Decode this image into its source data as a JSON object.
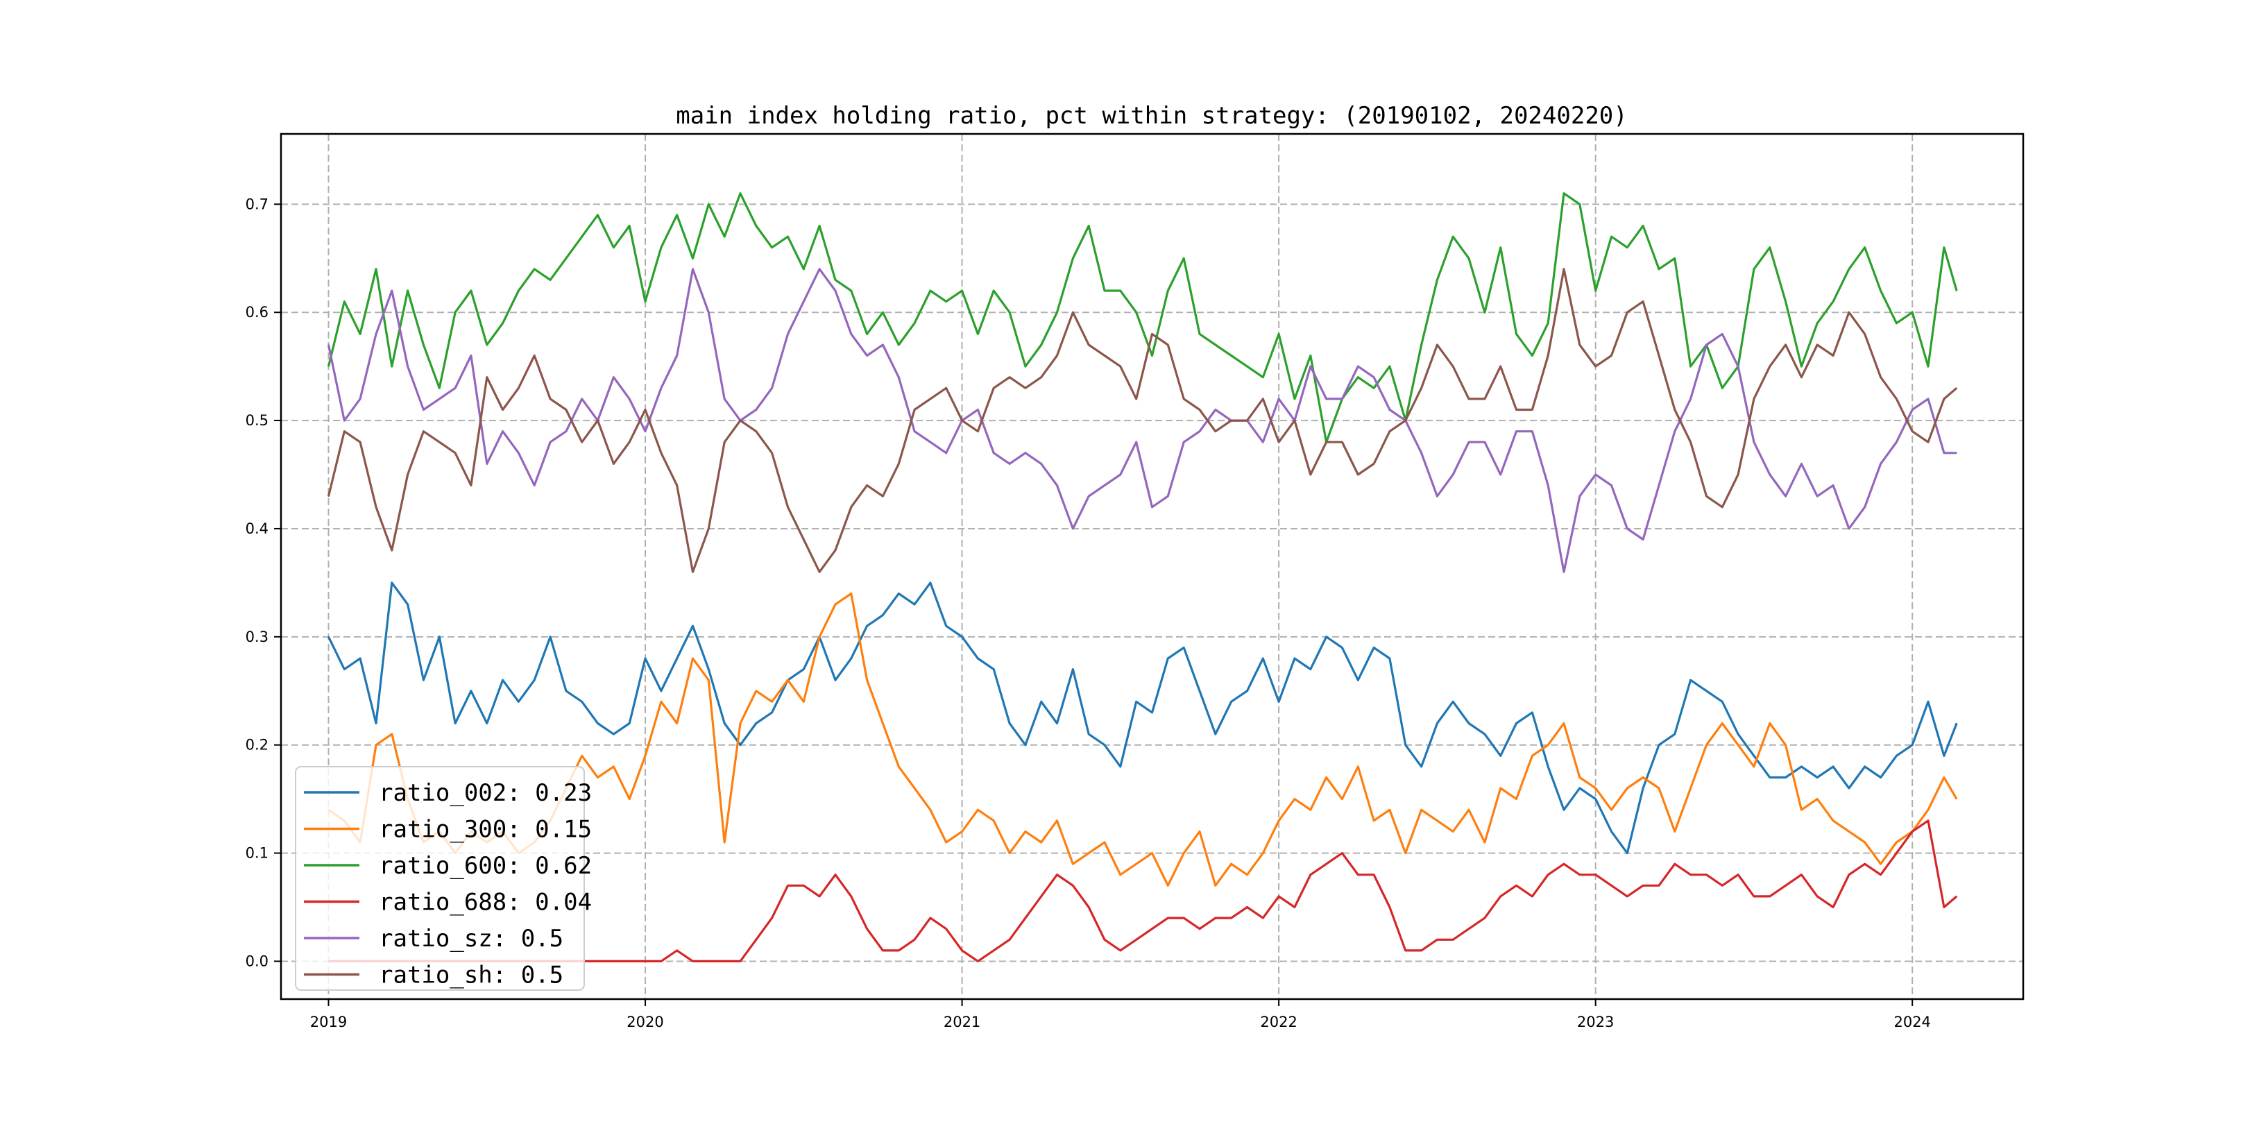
{
  "chart_data": {
    "type": "line",
    "title": "main index holding ratio, pct within strategy: (20190102, 20240220)",
    "xlabel": "",
    "ylabel": "",
    "xlim": [
      2018.85,
      2024.35
    ],
    "ylim": [
      -0.035,
      0.765
    ],
    "grid": true,
    "legend_position": "lower-left",
    "x_ticks": [
      2019,
      2020,
      2021,
      2022,
      2023,
      2024
    ],
    "x_tick_labels": [
      "2019",
      "2020",
      "2021",
      "2022",
      "2023",
      "2024"
    ],
    "y_ticks": [
      0.0,
      0.1,
      0.2,
      0.3,
      0.4,
      0.5,
      0.6,
      0.7
    ],
    "y_tick_labels": [
      "0.0",
      "0.1",
      "0.2",
      "0.3",
      "0.4",
      "0.5",
      "0.6",
      "0.7"
    ],
    "x": [
      2019.0,
      2019.05,
      2019.1,
      2019.15,
      2019.2,
      2019.25,
      2019.3,
      2019.35,
      2019.4,
      2019.45,
      2019.5,
      2019.55,
      2019.6,
      2019.65,
      2019.7,
      2019.75,
      2019.8,
      2019.85,
      2019.9,
      2019.95,
      2020.0,
      2020.05,
      2020.1,
      2020.15,
      2020.2,
      2020.25,
      2020.3,
      2020.35,
      2020.4,
      2020.45,
      2020.5,
      2020.55,
      2020.6,
      2020.65,
      2020.7,
      2020.75,
      2020.8,
      2020.85,
      2020.9,
      2020.95,
      2021.0,
      2021.05,
      2021.1,
      2021.15,
      2021.2,
      2021.25,
      2021.3,
      2021.35,
      2021.4,
      2021.45,
      2021.5,
      2021.55,
      2021.6,
      2021.65,
      2021.7,
      2021.75,
      2021.8,
      2021.85,
      2021.9,
      2021.95,
      2022.0,
      2022.05,
      2022.1,
      2022.15,
      2022.2,
      2022.25,
      2022.3,
      2022.35,
      2022.4,
      2022.45,
      2022.5,
      2022.55,
      2022.6,
      2022.65,
      2022.7,
      2022.75,
      2022.8,
      2022.85,
      2022.9,
      2022.95,
      2023.0,
      2023.05,
      2023.1,
      2023.15,
      2023.2,
      2023.25,
      2023.3,
      2023.35,
      2023.4,
      2023.45,
      2023.5,
      2023.55,
      2023.6,
      2023.65,
      2023.7,
      2023.75,
      2023.8,
      2023.85,
      2023.9,
      2023.95,
      2024.0,
      2024.05,
      2024.1,
      2024.14
    ],
    "series": [
      {
        "name": "ratio_002",
        "legend_label": "ratio_002: 0.23",
        "color": "#1f77b4",
        "values": [
          0.3,
          0.27,
          0.28,
          0.22,
          0.35,
          0.33,
          0.26,
          0.3,
          0.22,
          0.25,
          0.22,
          0.26,
          0.24,
          0.26,
          0.3,
          0.25,
          0.24,
          0.22,
          0.21,
          0.22,
          0.28,
          0.25,
          0.28,
          0.31,
          0.27,
          0.22,
          0.2,
          0.22,
          0.23,
          0.26,
          0.27,
          0.3,
          0.26,
          0.28,
          0.31,
          0.32,
          0.34,
          0.33,
          0.35,
          0.31,
          0.3,
          0.28,
          0.27,
          0.22,
          0.2,
          0.24,
          0.22,
          0.27,
          0.21,
          0.2,
          0.18,
          0.24,
          0.23,
          0.28,
          0.29,
          0.25,
          0.21,
          0.24,
          0.25,
          0.28,
          0.24,
          0.28,
          0.27,
          0.3,
          0.29,
          0.26,
          0.29,
          0.28,
          0.2,
          0.18,
          0.22,
          0.24,
          0.22,
          0.21,
          0.19,
          0.22,
          0.23,
          0.18,
          0.14,
          0.16,
          0.15,
          0.12,
          0.1,
          0.16,
          0.2,
          0.21,
          0.26,
          0.25,
          0.24,
          0.21,
          0.19,
          0.17,
          0.17,
          0.18,
          0.17,
          0.18,
          0.16,
          0.18,
          0.17,
          0.19,
          0.2,
          0.24,
          0.19,
          0.22
        ]
      },
      {
        "name": "ratio_300",
        "legend_label": "ratio_300: 0.15",
        "color": "#ff7f0e",
        "values": [
          0.14,
          0.13,
          0.11,
          0.2,
          0.21,
          0.15,
          0.11,
          0.12,
          0.1,
          0.12,
          0.11,
          0.12,
          0.1,
          0.11,
          0.13,
          0.16,
          0.19,
          0.17,
          0.18,
          0.15,
          0.19,
          0.24,
          0.22,
          0.28,
          0.26,
          0.11,
          0.22,
          0.25,
          0.24,
          0.26,
          0.24,
          0.3,
          0.33,
          0.34,
          0.26,
          0.22,
          0.18,
          0.16,
          0.14,
          0.11,
          0.12,
          0.14,
          0.13,
          0.1,
          0.12,
          0.11,
          0.13,
          0.09,
          0.1,
          0.11,
          0.08,
          0.09,
          0.1,
          0.07,
          0.1,
          0.12,
          0.07,
          0.09,
          0.08,
          0.1,
          0.13,
          0.15,
          0.14,
          0.17,
          0.15,
          0.18,
          0.13,
          0.14,
          0.1,
          0.14,
          0.13,
          0.12,
          0.14,
          0.11,
          0.16,
          0.15,
          0.19,
          0.2,
          0.22,
          0.17,
          0.16,
          0.14,
          0.16,
          0.17,
          0.16,
          0.12,
          0.16,
          0.2,
          0.22,
          0.2,
          0.18,
          0.22,
          0.2,
          0.14,
          0.15,
          0.13,
          0.12,
          0.11,
          0.09,
          0.11,
          0.12,
          0.14,
          0.17,
          0.15
        ]
      },
      {
        "name": "ratio_600",
        "legend_label": "ratio_600: 0.62",
        "color": "#2ca02c",
        "values": [
          0.55,
          0.61,
          0.58,
          0.64,
          0.55,
          0.62,
          0.57,
          0.53,
          0.6,
          0.62,
          0.57,
          0.59,
          0.62,
          0.64,
          0.63,
          0.65,
          0.67,
          0.69,
          0.66,
          0.68,
          0.61,
          0.66,
          0.69,
          0.65,
          0.7,
          0.67,
          0.71,
          0.68,
          0.66,
          0.67,
          0.64,
          0.68,
          0.63,
          0.62,
          0.58,
          0.6,
          0.57,
          0.59,
          0.62,
          0.61,
          0.62,
          0.58,
          0.62,
          0.6,
          0.55,
          0.57,
          0.6,
          0.65,
          0.68,
          0.62,
          0.62,
          0.6,
          0.56,
          0.62,
          0.65,
          0.58,
          0.57,
          0.56,
          0.55,
          0.54,
          0.58,
          0.52,
          0.56,
          0.48,
          0.52,
          0.54,
          0.53,
          0.55,
          0.5,
          0.57,
          0.63,
          0.67,
          0.65,
          0.6,
          0.66,
          0.58,
          0.56,
          0.59,
          0.71,
          0.7,
          0.62,
          0.67,
          0.66,
          0.68,
          0.64,
          0.65,
          0.55,
          0.57,
          0.53,
          0.55,
          0.64,
          0.66,
          0.61,
          0.55,
          0.59,
          0.61,
          0.64,
          0.66,
          0.62,
          0.59,
          0.6,
          0.55,
          0.66,
          0.62
        ]
      },
      {
        "name": "ratio_688",
        "legend_label": "ratio_688: 0.04",
        "color": "#d62728",
        "values": [
          0.0,
          0.0,
          0.0,
          0.0,
          0.0,
          0.0,
          0.0,
          0.0,
          0.0,
          0.0,
          0.0,
          0.0,
          0.0,
          0.0,
          0.0,
          0.0,
          0.0,
          0.0,
          0.0,
          0.0,
          0.0,
          0.0,
          0.01,
          0.0,
          0.0,
          0.0,
          0.0,
          0.02,
          0.04,
          0.07,
          0.07,
          0.06,
          0.08,
          0.06,
          0.03,
          0.01,
          0.01,
          0.02,
          0.04,
          0.03,
          0.01,
          0.0,
          0.01,
          0.02,
          0.04,
          0.06,
          0.08,
          0.07,
          0.05,
          0.02,
          0.01,
          0.02,
          0.03,
          0.04,
          0.04,
          0.03,
          0.04,
          0.04,
          0.05,
          0.04,
          0.06,
          0.05,
          0.08,
          0.09,
          0.1,
          0.08,
          0.08,
          0.05,
          0.01,
          0.01,
          0.02,
          0.02,
          0.03,
          0.04,
          0.06,
          0.07,
          0.06,
          0.08,
          0.09,
          0.08,
          0.08,
          0.07,
          0.06,
          0.07,
          0.07,
          0.09,
          0.08,
          0.08,
          0.07,
          0.08,
          0.06,
          0.06,
          0.07,
          0.08,
          0.06,
          0.05,
          0.08,
          0.09,
          0.08,
          0.1,
          0.12,
          0.13,
          0.05,
          0.06
        ]
      },
      {
        "name": "ratio_sz",
        "legend_label": "ratio_sz: 0.5",
        "color": "#9467bd",
        "values": [
          0.57,
          0.5,
          0.52,
          0.58,
          0.62,
          0.55,
          0.51,
          0.52,
          0.53,
          0.56,
          0.46,
          0.49,
          0.47,
          0.44,
          0.48,
          0.49,
          0.52,
          0.5,
          0.54,
          0.52,
          0.49,
          0.53,
          0.56,
          0.64,
          0.6,
          0.52,
          0.5,
          0.51,
          0.53,
          0.58,
          0.61,
          0.64,
          0.62,
          0.58,
          0.56,
          0.57,
          0.54,
          0.49,
          0.48,
          0.47,
          0.5,
          0.51,
          0.47,
          0.46,
          0.47,
          0.46,
          0.44,
          0.4,
          0.43,
          0.44,
          0.45,
          0.48,
          0.42,
          0.43,
          0.48,
          0.49,
          0.51,
          0.5,
          0.5,
          0.48,
          0.52,
          0.5,
          0.55,
          0.52,
          0.52,
          0.55,
          0.54,
          0.51,
          0.5,
          0.47,
          0.43,
          0.45,
          0.48,
          0.48,
          0.45,
          0.49,
          0.49,
          0.44,
          0.36,
          0.43,
          0.45,
          0.44,
          0.4,
          0.39,
          0.44,
          0.49,
          0.52,
          0.57,
          0.58,
          0.55,
          0.48,
          0.45,
          0.43,
          0.46,
          0.43,
          0.44,
          0.4,
          0.42,
          0.46,
          0.48,
          0.51,
          0.52,
          0.47,
          0.47
        ]
      },
      {
        "name": "ratio_sh",
        "legend_label": "ratio_sh: 0.5",
        "color": "#8c564b",
        "values": [
          0.43,
          0.49,
          0.48,
          0.42,
          0.38,
          0.45,
          0.49,
          0.48,
          0.47,
          0.44,
          0.54,
          0.51,
          0.53,
          0.56,
          0.52,
          0.51,
          0.48,
          0.5,
          0.46,
          0.48,
          0.51,
          0.47,
          0.44,
          0.36,
          0.4,
          0.48,
          0.5,
          0.49,
          0.47,
          0.42,
          0.39,
          0.36,
          0.38,
          0.42,
          0.44,
          0.43,
          0.46,
          0.51,
          0.52,
          0.53,
          0.5,
          0.49,
          0.53,
          0.54,
          0.53,
          0.54,
          0.56,
          0.6,
          0.57,
          0.56,
          0.55,
          0.52,
          0.58,
          0.57,
          0.52,
          0.51,
          0.49,
          0.5,
          0.5,
          0.52,
          0.48,
          0.5,
          0.45,
          0.48,
          0.48,
          0.45,
          0.46,
          0.49,
          0.5,
          0.53,
          0.57,
          0.55,
          0.52,
          0.52,
          0.55,
          0.51,
          0.51,
          0.56,
          0.64,
          0.57,
          0.55,
          0.56,
          0.6,
          0.61,
          0.56,
          0.51,
          0.48,
          0.43,
          0.42,
          0.45,
          0.52,
          0.55,
          0.57,
          0.54,
          0.57,
          0.56,
          0.6,
          0.58,
          0.54,
          0.52,
          0.49,
          0.48,
          0.52,
          0.53
        ]
      }
    ]
  }
}
